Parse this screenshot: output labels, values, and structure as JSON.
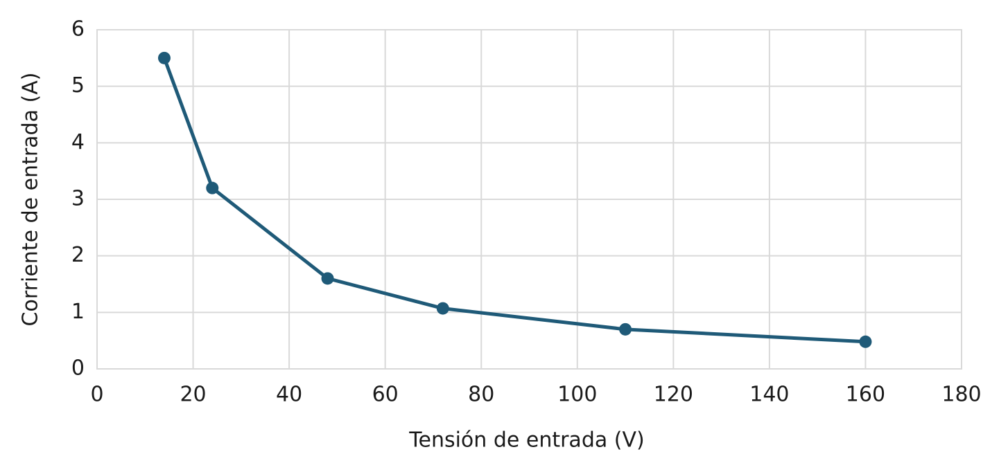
{
  "chart_data": {
    "type": "line",
    "x_label": "Tensión de entrada (V)",
    "y_label": "Corriente de entrada (A)",
    "x": [
      14,
      24,
      48,
      72,
      110,
      160
    ],
    "values": [
      5.5,
      3.2,
      1.6,
      1.07,
      0.7,
      0.48
    ],
    "color": "#1f5a78",
    "xlim": [
      0,
      180
    ],
    "xticks": [
      0,
      20,
      40,
      60,
      80,
      100,
      120,
      140,
      160,
      180
    ],
    "ylim": [
      0,
      6
    ],
    "yticks": [
      0,
      1,
      2,
      3,
      4,
      5,
      6
    ],
    "grid": true,
    "markers": true
  }
}
